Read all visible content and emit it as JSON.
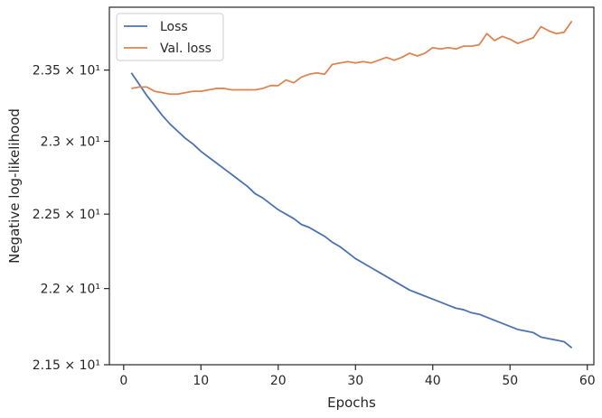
{
  "chart_data": {
    "type": "line",
    "xlabel": "Epochs",
    "ylabel": "Negative log-likelihood",
    "xlim": [
      -1.85,
      60.85
    ],
    "ylim": [
      21.5,
      23.95
    ],
    "y_scale": "log",
    "grid": false,
    "legend_position": "top-left",
    "x_ticks": [
      0,
      10,
      20,
      30,
      40,
      50,
      60
    ],
    "x_tick_labels": [
      "0",
      "10",
      "20",
      "30",
      "40",
      "50",
      "60"
    ],
    "y_ticks": [
      21.5,
      22.0,
      22.5,
      23.0,
      23.5
    ],
    "y_tick_labels": [
      "2.15 × 10¹",
      "2.2 × 10¹",
      "2.25 × 10¹",
      "2.3 × 10¹",
      "2.35 × 10¹"
    ],
    "x": [
      1,
      2,
      3,
      4,
      5,
      6,
      7,
      8,
      9,
      10,
      11,
      12,
      13,
      14,
      15,
      16,
      17,
      18,
      19,
      20,
      21,
      22,
      23,
      24,
      25,
      26,
      27,
      28,
      29,
      30,
      31,
      32,
      33,
      34,
      35,
      36,
      37,
      38,
      39,
      40,
      41,
      42,
      43,
      44,
      45,
      46,
      47,
      48,
      49,
      50,
      51,
      52,
      53,
      54,
      55,
      56,
      57,
      58
    ],
    "series": [
      {
        "name": "Loss",
        "color": "#4c72b0",
        "values": [
          23.48,
          23.4,
          23.32,
          23.25,
          23.18,
          23.12,
          23.07,
          23.02,
          22.98,
          22.93,
          22.89,
          22.85,
          22.81,
          22.77,
          22.73,
          22.69,
          22.64,
          22.61,
          22.57,
          22.53,
          22.5,
          22.47,
          22.43,
          22.41,
          22.38,
          22.35,
          22.31,
          22.28,
          22.24,
          22.2,
          22.17,
          22.14,
          22.11,
          22.08,
          22.05,
          22.02,
          21.99,
          21.97,
          21.95,
          21.93,
          21.91,
          21.89,
          21.87,
          21.86,
          21.84,
          21.83,
          21.81,
          21.79,
          21.77,
          21.75,
          21.73,
          21.72,
          21.71,
          21.68,
          21.67,
          21.66,
          21.65,
          21.61
        ]
      },
      {
        "name": "Val. loss",
        "color": "#dd8452",
        "values": [
          23.37,
          23.38,
          23.38,
          23.35,
          23.34,
          23.33,
          23.33,
          23.34,
          23.35,
          23.35,
          23.36,
          23.37,
          23.37,
          23.36,
          23.36,
          23.36,
          23.36,
          23.37,
          23.39,
          23.39,
          23.43,
          23.41,
          23.45,
          23.47,
          23.48,
          23.47,
          23.54,
          23.55,
          23.56,
          23.55,
          23.56,
          23.55,
          23.57,
          23.59,
          23.57,
          23.59,
          23.62,
          23.6,
          23.62,
          23.66,
          23.65,
          23.66,
          23.65,
          23.67,
          23.67,
          23.68,
          23.76,
          23.71,
          23.74,
          23.72,
          23.69,
          23.71,
          23.73,
          23.81,
          23.78,
          23.76,
          23.77,
          23.85
        ]
      }
    ]
  }
}
